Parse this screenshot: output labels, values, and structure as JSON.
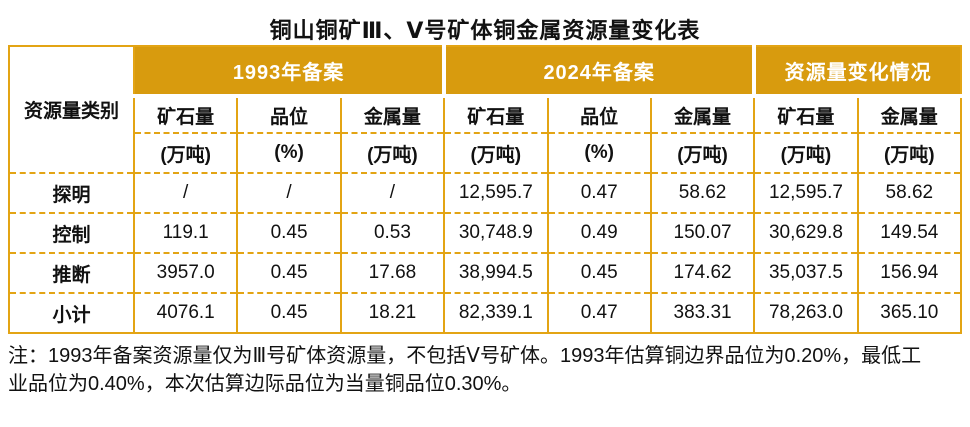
{
  "title": "铜山铜矿Ⅲ、Ⅴ号矿体铜金属资源量变化表",
  "colors": {
    "gold_band": "#D89B0E",
    "table_border": "#E3A414",
    "band_text": "#FFFFFF",
    "body_text": "#111111"
  },
  "table": {
    "category_header": "资源量类别",
    "groups": [
      {
        "label": "1993年备案"
      },
      {
        "label": "2024年备案"
      },
      {
        "label": "资源量变化情况"
      }
    ],
    "columns": [
      {
        "name": "矿石量",
        "unit": "(万吨)"
      },
      {
        "name": "品位",
        "unit": "(%)"
      },
      {
        "name": "金属量",
        "unit": "(万吨)"
      },
      {
        "name": "矿石量",
        "unit": "(万吨)"
      },
      {
        "name": "品位",
        "unit": "(%)"
      },
      {
        "name": "金属量",
        "unit": "(万吨)"
      },
      {
        "name": "矿石量",
        "unit": "(万吨)"
      },
      {
        "name": "金属量",
        "unit": "(万吨)"
      }
    ],
    "rows": [
      {
        "category": "探明",
        "values": [
          "/",
          "/",
          "/",
          "12,595.7",
          "0.47",
          "58.62",
          "12,595.7",
          "58.62"
        ]
      },
      {
        "category": "控制",
        "values": [
          "119.1",
          "0.45",
          "0.53",
          "30,748.9",
          "0.49",
          "150.07",
          "30,629.8",
          "149.54"
        ]
      },
      {
        "category": "推断",
        "values": [
          "3957.0",
          "0.45",
          "17.68",
          "38,994.5",
          "0.45",
          "174.62",
          "35,037.5",
          "156.94"
        ]
      },
      {
        "category": "小计",
        "values": [
          "4076.1",
          "0.45",
          "18.21",
          "82,339.1",
          "0.47",
          "383.31",
          "78,263.0",
          "365.10"
        ]
      }
    ]
  },
  "note": {
    "line1": "注：1993年备案资源量仅为Ⅲ号矿体资源量，不包括Ⅴ号矿体。1993年估算铜边界品位为0.20%，最低工",
    "line2": "业品位为0.40%，本次估算边际品位为当量铜品位0.30%。"
  }
}
